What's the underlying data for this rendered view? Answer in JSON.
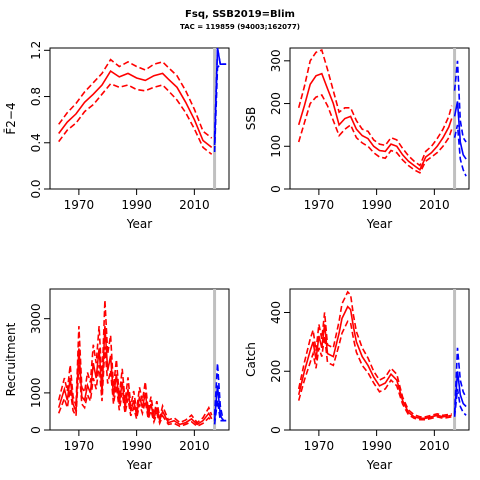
{
  "header": {
    "title": "Fsq, SSB2019=Blim",
    "subtitle": "TAC = 119859 (94003;162077)"
  },
  "colors": {
    "history": "#ff0000",
    "forecast": "#0000ff",
    "reference_line": "#c0c0c0"
  },
  "chart_data": [
    {
      "id": "F",
      "type": "line",
      "xlabel": "Year",
      "ylabel": "F̄2−4",
      "xlim": [
        1960,
        2022
      ],
      "ylim": [
        0,
        1.22
      ],
      "xticks": [
        1970,
        1990,
        2010
      ],
      "yticks": [
        0.0,
        0.4,
        0.8,
        1.2
      ],
      "ytick_labels": [
        "0.0",
        "0.4",
        "0.8",
        "1.2"
      ],
      "vline": 2017,
      "history": {
        "x": [
          1963,
          1966,
          1969,
          1972,
          1975,
          1978,
          1981,
          1984,
          1987,
          1990,
          1993,
          1996,
          1999,
          2001,
          2004,
          2007,
          2010,
          2013,
          2016
        ],
        "mid": [
          0.48,
          0.58,
          0.65,
          0.75,
          0.82,
          0.9,
          1.02,
          0.97,
          1.0,
          0.96,
          0.94,
          0.98,
          1.0,
          0.95,
          0.88,
          0.75,
          0.6,
          0.42,
          0.36
        ],
        "low": [
          0.41,
          0.51,
          0.57,
          0.67,
          0.73,
          0.82,
          0.91,
          0.88,
          0.9,
          0.86,
          0.85,
          0.88,
          0.9,
          0.85,
          0.77,
          0.66,
          0.52,
          0.36,
          0.3
        ],
        "high": [
          0.56,
          0.66,
          0.74,
          0.84,
          0.92,
          1.0,
          1.12,
          1.06,
          1.1,
          1.06,
          1.03,
          1.08,
          1.1,
          1.05,
          0.98,
          0.85,
          0.69,
          0.5,
          0.44
        ]
      },
      "forecast": {
        "x": [
          2017,
          2018,
          2019,
          2020,
          2021
        ],
        "mid": [
          0.38,
          1.22,
          1.08,
          1.08,
          1.08
        ],
        "low": [
          0.32,
          1.05,
          1.08,
          1.08,
          1.08
        ],
        "high": [
          0.45,
          1.22,
          1.08,
          1.08,
          1.08
        ]
      }
    },
    {
      "id": "SSB",
      "type": "line",
      "xlabel": "Year",
      "ylabel": "SSB",
      "xlim": [
        1960,
        2022
      ],
      "ylim": [
        0,
        330
      ],
      "xticks": [
        1970,
        1990,
        2010
      ],
      "yticks": [
        0,
        100,
        200,
        300
      ],
      "ytick_labels": [
        "0",
        "100",
        "200",
        "300"
      ],
      "vline": 2017,
      "history": {
        "x": [
          1963,
          1965,
          1967,
          1969,
          1971,
          1973,
          1975,
          1977,
          1979,
          1981,
          1983,
          1985,
          1987,
          1989,
          1991,
          1993,
          1995,
          1997,
          1999,
          2001,
          2003,
          2005,
          2007,
          2009,
          2011,
          2013,
          2015,
          2016
        ],
        "mid": [
          150,
          195,
          245,
          265,
          270,
          235,
          200,
          150,
          165,
          170,
          140,
          125,
          118,
          100,
          90,
          88,
          105,
          100,
          80,
          65,
          55,
          45,
          75,
          85,
          100,
          120,
          145,
          165
        ],
        "low": [
          110,
          155,
          200,
          215,
          220,
          195,
          160,
          125,
          140,
          150,
          120,
          108,
          100,
          85,
          75,
          72,
          90,
          85,
          68,
          55,
          45,
          38,
          65,
          75,
          85,
          100,
          120,
          140
        ],
        "high": [
          190,
          240,
          300,
          320,
          325,
          280,
          230,
          180,
          190,
          190,
          160,
          140,
          135,
          115,
          105,
          102,
          120,
          115,
          95,
          78,
          65,
          55,
          88,
          100,
          118,
          140,
          170,
          195
        ]
      },
      "forecast": {
        "x": [
          2017,
          2018,
          2019,
          2020,
          2021
        ],
        "mid": [
          170,
          205,
          110,
          80,
          70
        ],
        "low": [
          120,
          150,
          70,
          45,
          30
        ],
        "high": [
          230,
          300,
          160,
          120,
          110
        ]
      }
    },
    {
      "id": "Recruitment",
      "type": "line",
      "xlabel": "Year",
      "ylabel": "Recruitment",
      "xlim": [
        1960,
        2022
      ],
      "ylim": [
        0,
        3800
      ],
      "xticks": [
        1970,
        1990,
        2010
      ],
      "yticks": [
        0,
        1000,
        3000
      ],
      "ytick_labels": [
        "0",
        "1000",
        "3000"
      ],
      "vline": 2017,
      "history": {
        "x": [
          1963,
          1965,
          1966,
          1967,
          1968,
          1969,
          1970,
          1971,
          1972,
          1973,
          1974,
          1975,
          1976,
          1977,
          1978,
          1979,
          1980,
          1981,
          1982,
          1983,
          1984,
          1985,
          1986,
          1987,
          1988,
          1989,
          1990,
          1991,
          1992,
          1993,
          1994,
          1995,
          1996,
          1997,
          1998,
          1999,
          2001,
          2003,
          2005,
          2007,
          2009,
          2011,
          2013,
          2015,
          2016
        ],
        "mid": [
          600,
          1100,
          800,
          1400,
          700,
          500,
          2200,
          900,
          800,
          1200,
          1000,
          1800,
          1400,
          2200,
          1000,
          2800,
          1600,
          2000,
          900,
          1500,
          700,
          1300,
          600,
          1100,
          500,
          800,
          400,
          900,
          600,
          1000,
          400,
          700,
          300,
          600,
          250,
          500,
          200,
          250,
          150,
          200,
          300,
          150,
          250,
          450,
          300
        ],
        "low": [
          450,
          850,
          600,
          1100,
          520,
          380,
          1750,
          700,
          600,
          950,
          780,
          1400,
          1100,
          1750,
          780,
          2250,
          1250,
          1600,
          700,
          1200,
          530,
          1000,
          450,
          850,
          380,
          600,
          300,
          700,
          450,
          780,
          300,
          520,
          220,
          450,
          180,
          380,
          150,
          180,
          100,
          150,
          220,
          100,
          180,
          330,
          220
        ],
        "high": [
          800,
          1400,
          1050,
          1750,
          900,
          650,
          2800,
          1150,
          1020,
          1550,
          1280,
          2300,
          1800,
          2800,
          1300,
          3500,
          2050,
          2550,
          1150,
          1900,
          900,
          1650,
          780,
          1420,
          650,
          1050,
          520,
          1150,
          780,
          1300,
          520,
          900,
          400,
          780,
          330,
          650,
          270,
          330,
          200,
          270,
          400,
          200,
          330,
          600,
          400
        ]
      },
      "forecast": {
        "x": [
          2017,
          2018,
          2019,
          2020,
          2021
        ],
        "mid": [
          250,
          1200,
          400,
          250,
          250
        ],
        "low": [
          150,
          800,
          250,
          250,
          250
        ],
        "high": [
          400,
          1800,
          650,
          250,
          250
        ]
      }
    },
    {
      "id": "Catch",
      "type": "line",
      "xlabel": "Year",
      "ylabel": "Catch",
      "xlim": [
        1960,
        2022
      ],
      "ylim": [
        0,
        480
      ],
      "xticks": [
        1970,
        1990,
        2010
      ],
      "yticks": [
        0,
        200,
        400
      ],
      "ytick_labels": [
        "0",
        "200",
        "400"
      ],
      "vline": 2017,
      "history": {
        "x": [
          1963,
          1965,
          1967,
          1968,
          1969,
          1970,
          1971,
          1972,
          1973,
          1975,
          1977,
          1978,
          1979,
          1980,
          1981,
          1982,
          1983,
          1985,
          1987,
          1989,
          1991,
          1993,
          1995,
          1997,
          1999,
          2001,
          2003,
          2005,
          2007,
          2009,
          2011,
          2013,
          2015,
          2016
        ],
        "mid": [
          120,
          200,
          270,
          300,
          240,
          320,
          280,
          360,
          260,
          250,
          330,
          380,
          400,
          420,
          410,
          350,
          300,
          250,
          220,
          180,
          150,
          160,
          190,
          170,
          100,
          60,
          45,
          40,
          40,
          45,
          50,
          45,
          48,
          50
        ],
        "low": [
          100,
          170,
          230,
          260,
          210,
          280,
          250,
          320,
          230,
          220,
          290,
          330,
          350,
          370,
          365,
          310,
          265,
          220,
          195,
          160,
          130,
          140,
          170,
          150,
          88,
          52,
          40,
          35,
          35,
          40,
          45,
          40,
          43,
          45
        ],
        "high": [
          140,
          230,
          310,
          340,
          270,
          360,
          310,
          400,
          290,
          280,
          370,
          430,
          450,
          470,
          460,
          390,
          335,
          280,
          245,
          200,
          170,
          180,
          210,
          190,
          112,
          68,
          52,
          45,
          45,
          50,
          55,
          50,
          53,
          55
        ]
      },
      "forecast": {
        "x": [
          2017,
          2018,
          2019,
          2020,
          2021
        ],
        "mid": [
          50,
          200,
          120,
          90,
          80
        ],
        "low": [
          45,
          140,
          80,
          60,
          50
        ],
        "high": [
          55,
          280,
          170,
          130,
          110
        ]
      }
    }
  ]
}
